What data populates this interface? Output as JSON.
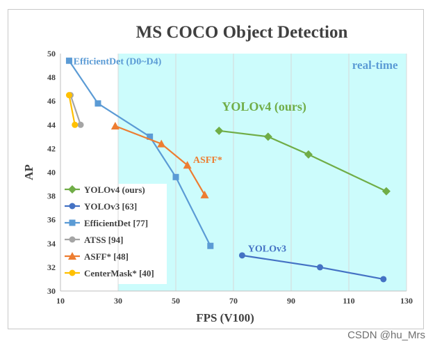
{
  "chart_data": {
    "type": "line",
    "title": "MS COCO Object Detection",
    "xlabel": "FPS (V100)",
    "ylabel": "AP",
    "xlim": [
      10,
      130
    ],
    "ylim": [
      30,
      50
    ],
    "xticks": [
      10,
      30,
      50,
      70,
      90,
      110,
      130
    ],
    "yticks": [
      30,
      32,
      34,
      36,
      38,
      40,
      42,
      44,
      46,
      48,
      50
    ],
    "grid": "vertical",
    "realtime_region": {
      "label": "real-time",
      "x_start": 30,
      "color": "#ccfcfc"
    },
    "series": [
      {
        "name": "YOLOv4 (ours)",
        "color": "#70ad47",
        "marker": "diamond",
        "x": [
          65,
          82,
          96,
          123
        ],
        "y": [
          43.5,
          43.0,
          41.5,
          38.4
        ]
      },
      {
        "name": "YOLOv3 [63]",
        "color": "#4472c4",
        "marker": "circle",
        "x": [
          73,
          100,
          122
        ],
        "y": [
          33.0,
          32.0,
          31.0
        ]
      },
      {
        "name": "EfficientDet [77]",
        "color": "#5b9bd5",
        "marker": "square",
        "x": [
          13,
          23,
          41,
          50,
          62
        ],
        "y": [
          49.4,
          45.8,
          43.0,
          39.6,
          33.8
        ]
      },
      {
        "name": "ATSS [94]",
        "color": "#a5a5a5",
        "marker": "circle",
        "x": [
          13.5,
          17
        ],
        "y": [
          46.5,
          44.0
        ]
      },
      {
        "name": "ASFF* [48]",
        "color": "#ed7d31",
        "marker": "triangle",
        "x": [
          29,
          45,
          54,
          60
        ],
        "y": [
          43.9,
          42.4,
          40.6,
          38.1
        ]
      },
      {
        "name": "CenterMask* [40]",
        "color": "#ffc000",
        "marker": "circle",
        "x": [
          13,
          15
        ],
        "y": [
          46.5,
          44.0
        ]
      }
    ],
    "annotations": [
      {
        "text": "EfficientDet (D0~D4)",
        "color": "#5b9bd5",
        "x": 14.5,
        "y": 49.1
      },
      {
        "text": "real-time",
        "color": "#5b9bd5",
        "x": 127,
        "y": 48.7
      },
      {
        "text": "YOLOv4 (ours)",
        "color": "#70ad47",
        "x": 66,
        "y": 45.2
      },
      {
        "text": "ASFF*",
        "color": "#ed7d31",
        "x": 56,
        "y": 40.8
      },
      {
        "text": "YOLOv3",
        "color": "#4472c4",
        "x": 75,
        "y": 33.3
      }
    ]
  },
  "watermark": "CSDN @hu_Mrs"
}
